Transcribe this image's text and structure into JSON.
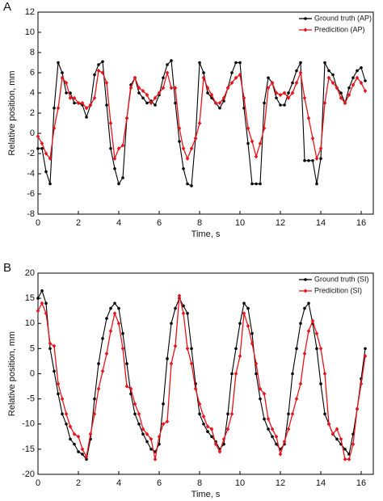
{
  "chart_data": [
    {
      "type": "line",
      "panel_label": "A",
      "xlabel": "Time, s",
      "ylabel": "Relative position, mm",
      "xlim": [
        0,
        16.6
      ],
      "xticks": [
        0,
        2,
        4,
        6,
        8,
        10,
        12,
        14,
        16
      ],
      "ylim": [
        -8,
        12
      ],
      "yticks": [
        -8,
        -6,
        -4,
        -2,
        0,
        2,
        4,
        6,
        8,
        10,
        12
      ],
      "legend": "upper right",
      "x": [
        0,
        0.2,
        0.4,
        0.6,
        0.8,
        1,
        1.2,
        1.4,
        1.6,
        1.8,
        2,
        2.2,
        2.4,
        2.6,
        2.8,
        3,
        3.2,
        3.4,
        3.6,
        3.8,
        4,
        4.2,
        4.4,
        4.6,
        4.8,
        5,
        5.2,
        5.4,
        5.6,
        5.8,
        6,
        6.2,
        6.4,
        6.6,
        6.8,
        7,
        7.2,
        7.4,
        7.6,
        7.8,
        8,
        8.2,
        8.4,
        8.6,
        8.8,
        9,
        9.2,
        9.4,
        9.6,
        9.8,
        10,
        10.2,
        10.4,
        10.6,
        10.8,
        11,
        11.2,
        11.4,
        11.6,
        11.8,
        12,
        12.2,
        12.4,
        12.6,
        12.8,
        13,
        13.2,
        13.4,
        13.6,
        13.8,
        14,
        14.2,
        14.4,
        14.6,
        14.8,
        15,
        15.2,
        15.4,
        15.6,
        15.8,
        16,
        16.2
      ],
      "series": [
        {
          "name": "Ground truth (AP)",
          "color": "#000000",
          "values": [
            -1.5,
            -1.5,
            -3.8,
            -5,
            2.5,
            7,
            6,
            4,
            4,
            3,
            3,
            2.8,
            1.6,
            2.8,
            5.8,
            6.8,
            7.1,
            2.8,
            -1.5,
            -3.5,
            -5,
            -4.4,
            1.5,
            4.8,
            5.5,
            4,
            3.5,
            3,
            3.2,
            2.8,
            3.8,
            5.5,
            6.8,
            7.2,
            3,
            -0.8,
            -3.5,
            -5,
            -5.2,
            -0.5,
            7,
            6,
            4,
            3.5,
            3,
            2.5,
            3.2,
            4.5,
            6,
            7,
            7,
            2.5,
            -1,
            -5,
            -5,
            -5,
            3,
            5.5,
            5,
            3.5,
            2.8,
            2.8,
            4,
            5,
            6.2,
            7,
            -2.7,
            -2.7,
            -2.7,
            -5,
            -2.5,
            7,
            6.2,
            5.8,
            4.5,
            4,
            3,
            4.5,
            5.5,
            6.2,
            6.5,
            5.2
          ]
        },
        {
          "name": "Predicition (AP)",
          "color": "#e8141c",
          "values": [
            -0.3,
            -1,
            -2,
            -2.5,
            0.5,
            2.5,
            5.5,
            5,
            3.5,
            3.5,
            3,
            3,
            2.5,
            2.8,
            3.5,
            6.2,
            6,
            5,
            1,
            -2.5,
            -1.5,
            -1.2,
            1.5,
            4.5,
            5.5,
            4.5,
            4.2,
            3.8,
            3,
            3.5,
            4,
            4.5,
            6,
            4.5,
            4.5,
            0.5,
            -1.5,
            -2.5,
            -1.5,
            -0.5,
            1,
            5.5,
            4.5,
            3.8,
            3,
            3,
            3.5,
            4.5,
            5,
            5.5,
            5.8,
            3.5,
            0.5,
            -0.8,
            -2.3,
            -1,
            0.5,
            4.5,
            5,
            4,
            3.8,
            4,
            3.5,
            4,
            5,
            6,
            3.5,
            1.5,
            -0.5,
            -2.5,
            -1.5,
            3,
            5.5,
            5,
            4.5,
            3.5,
            3,
            3.8,
            4.8,
            5.5,
            5,
            4.2
          ]
        }
      ]
    },
    {
      "type": "line",
      "panel_label": "B",
      "xlabel": "Time, s",
      "ylabel": "Relative position, mm",
      "xlim": [
        0,
        16.6
      ],
      "xticks": [
        0,
        2,
        4,
        6,
        8,
        10,
        12,
        14,
        16
      ],
      "ylim": [
        -20,
        20
      ],
      "yticks": [
        -20,
        -15,
        -10,
        -5,
        0,
        5,
        10,
        15,
        20
      ],
      "legend": "upper right",
      "x": [
        0,
        0.2,
        0.4,
        0.6,
        0.8,
        1,
        1.2,
        1.4,
        1.6,
        1.8,
        2,
        2.2,
        2.4,
        2.6,
        2.8,
        3,
        3.2,
        3.4,
        3.6,
        3.8,
        4,
        4.2,
        4.4,
        4.6,
        4.8,
        5,
        5.2,
        5.4,
        5.6,
        5.8,
        6,
        6.2,
        6.4,
        6.6,
        6.8,
        7,
        7.2,
        7.4,
        7.6,
        7.8,
        8,
        8.2,
        8.4,
        8.6,
        8.8,
        9,
        9.2,
        9.4,
        9.6,
        9.8,
        10,
        10.2,
        10.4,
        10.6,
        10.8,
        11,
        11.2,
        11.4,
        11.6,
        11.8,
        12,
        12.2,
        12.4,
        12.6,
        12.8,
        13,
        13.2,
        13.4,
        13.6,
        13.8,
        14,
        14.2,
        14.4,
        14.6,
        14.8,
        15,
        15.2,
        15.4,
        15.6,
        15.8,
        16,
        16.2
      ],
      "series": [
        {
          "name": "Ground truth (SI)",
          "color": "#000000",
          "values": [
            15,
            16.5,
            14,
            5,
            0.5,
            -4,
            -8,
            -10,
            -13,
            -14,
            -15.5,
            -16,
            -17,
            -13,
            -5,
            2,
            7,
            11,
            13,
            14,
            13,
            8,
            2,
            -4,
            -8,
            -10,
            -12,
            -13.5,
            -15,
            -15.5,
            -14,
            -6,
            3,
            10,
            13,
            15,
            13.5,
            12,
            5,
            -2,
            -8,
            -10,
            -11.5,
            -12.5,
            -13.5,
            -15,
            -14,
            -8,
            0,
            5,
            10,
            14,
            13,
            8,
            0,
            -5,
            -9,
            -11,
            -12.5,
            -14,
            -15,
            -14,
            -8,
            0,
            5,
            10,
            13,
            14,
            10,
            5,
            -2,
            -8,
            -10,
            -12,
            -13,
            -14,
            -15,
            -16,
            -12,
            -7,
            -1,
            5
          ]
        },
        {
          "name": "Predicition (SI)",
          "color": "#e8141c",
          "values": [
            12.5,
            14,
            12,
            6,
            5.5,
            -2,
            -5,
            -8,
            -10.5,
            -12,
            -12.5,
            -15,
            -16.5,
            -12,
            -8,
            -3,
            0.5,
            4,
            8.5,
            12,
            10,
            5,
            -2.5,
            -3,
            -6,
            -8,
            -11,
            -12,
            -13,
            -17,
            -12.5,
            -10,
            -9.5,
            2,
            5.5,
            15.5,
            12,
            5,
            2,
            -3,
            -6,
            -8.5,
            -10.5,
            -11,
            -14,
            -15.5,
            -13,
            -11,
            -8,
            0,
            3.5,
            12,
            9.5,
            6,
            2,
            -3,
            -4,
            -9,
            -11,
            -12.5,
            -16,
            -13.5,
            -11,
            -8,
            -5,
            -2,
            4,
            8.5,
            10.5,
            8,
            5,
            0,
            -10,
            -12,
            -11,
            -13,
            -17,
            -17,
            -14,
            -7,
            -2,
            3.5
          ]
        }
      ]
    }
  ]
}
